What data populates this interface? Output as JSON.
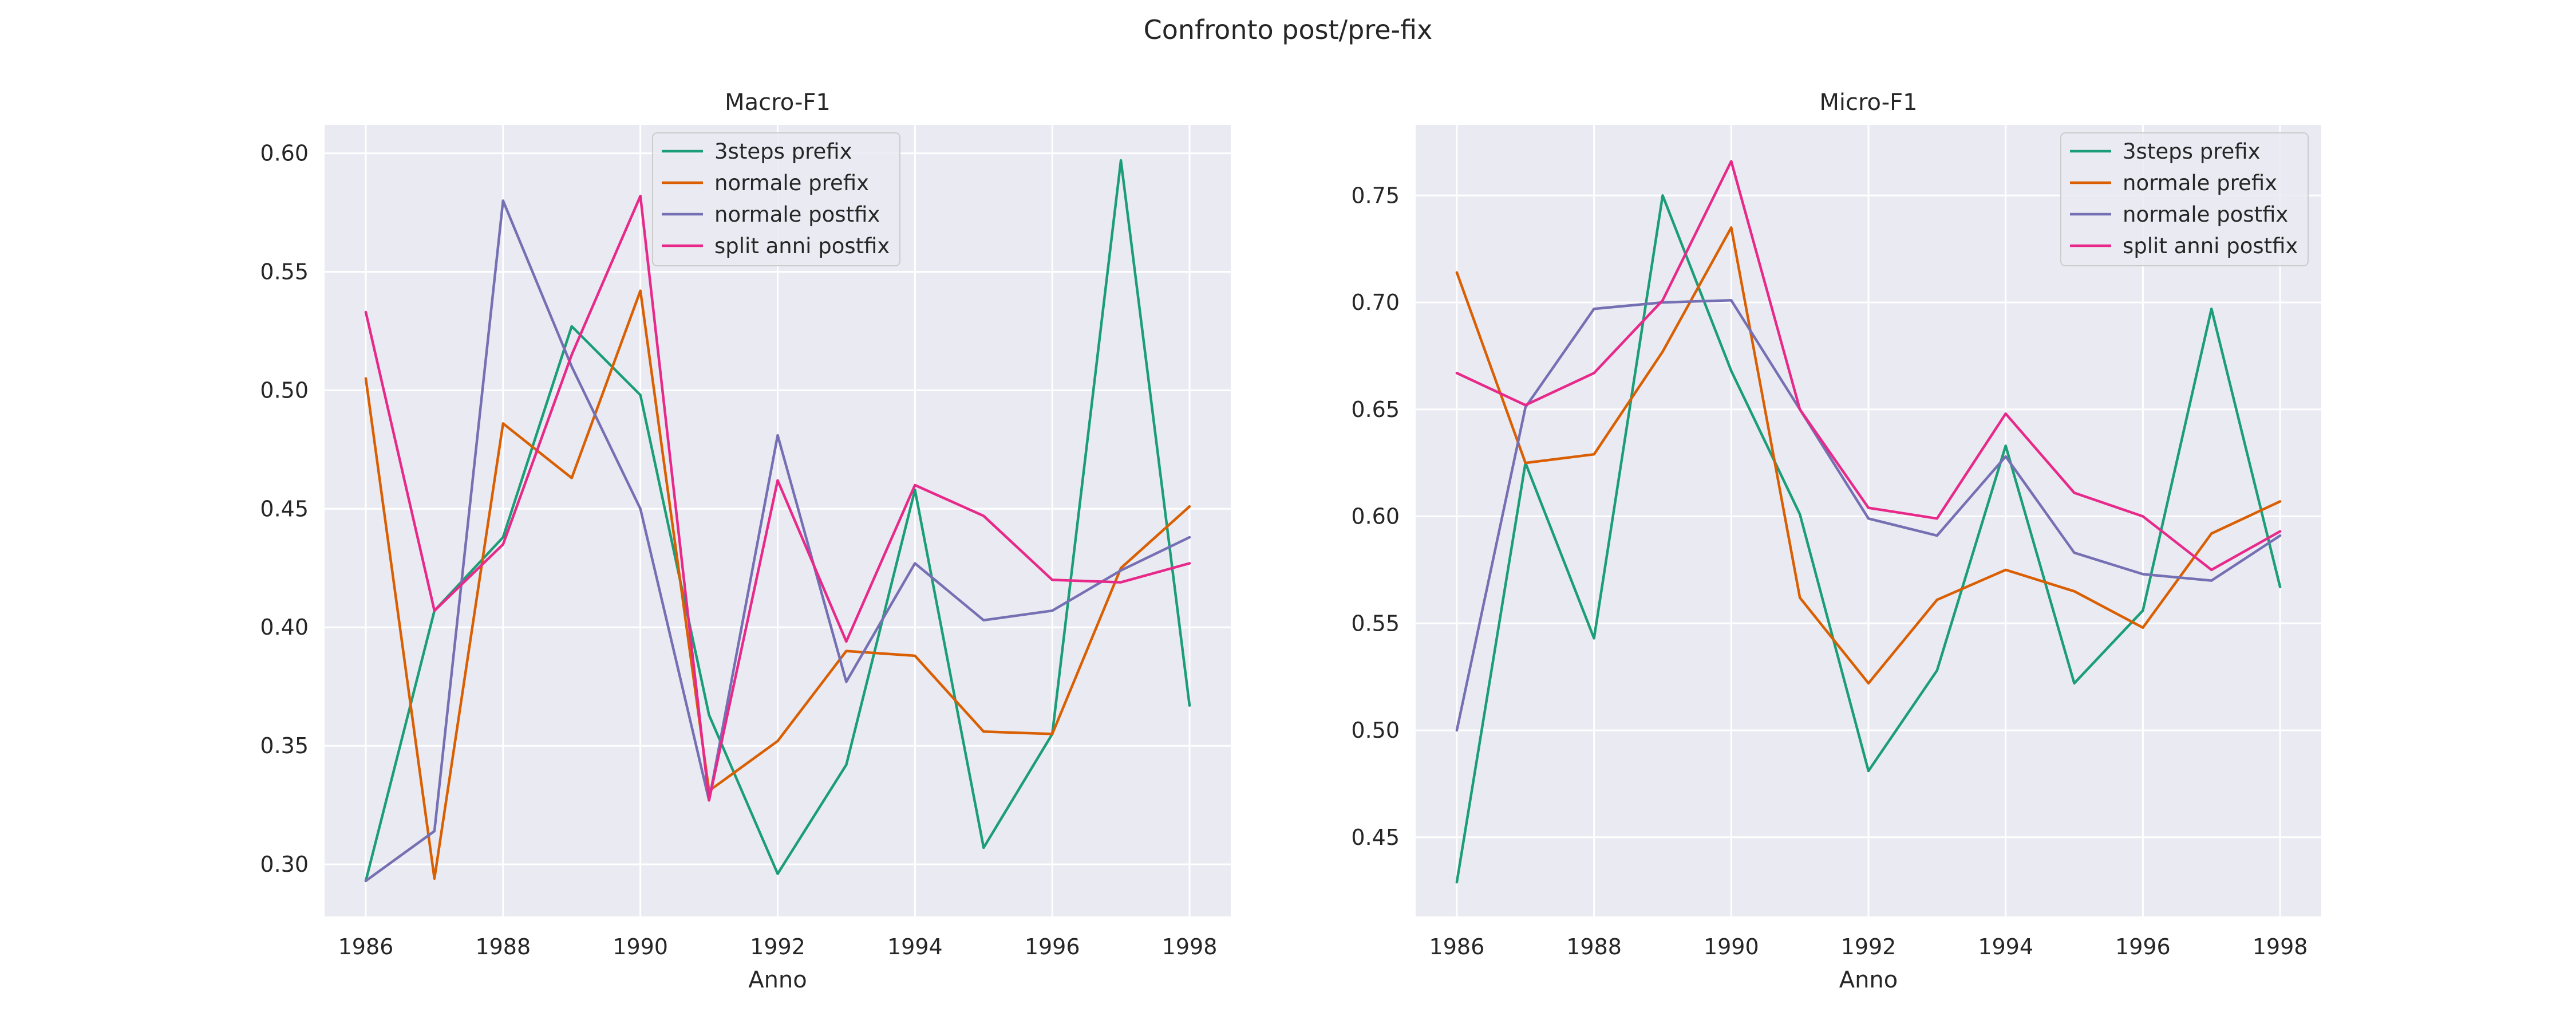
{
  "figure": {
    "suptitle": "Confronto post/pre-fix"
  },
  "chart_data": [
    {
      "type": "line",
      "title": "Macro-F1",
      "xlabel": "Anno",
      "ylabel": "",
      "x": [
        1986,
        1987,
        1988,
        1989,
        1990,
        1991,
        1992,
        1993,
        1994,
        1995,
        1996,
        1997,
        1998
      ],
      "xlim": [
        1985.4,
        1998.6
      ],
      "ylim": [
        0.278,
        0.612
      ],
      "xticks": [
        1986,
        1988,
        1990,
        1992,
        1994,
        1996,
        1998
      ],
      "yticks": [
        "0.30",
        "0.35",
        "0.40",
        "0.45",
        "0.50",
        "0.55",
        "0.60"
      ],
      "grid": true,
      "legend_position": "top-center",
      "series": [
        {
          "name": "3steps prefix",
          "color": "#1b9e77",
          "values": [
            0.293,
            0.407,
            0.438,
            0.527,
            0.498,
            0.363,
            0.296,
            0.342,
            0.458,
            0.307,
            0.355,
            0.597,
            0.367
          ]
        },
        {
          "name": "normale prefix",
          "color": "#d95f02",
          "values": [
            0.505,
            0.294,
            0.486,
            0.463,
            0.542,
            0.331,
            0.352,
            0.39,
            0.388,
            0.356,
            0.355,
            0.425,
            0.451
          ]
        },
        {
          "name": "normale postfix",
          "color": "#7570b3",
          "values": [
            0.293,
            0.314,
            0.58,
            0.51,
            0.45,
            0.327,
            0.481,
            0.377,
            0.427,
            0.403,
            0.407,
            0.424,
            0.438
          ]
        },
        {
          "name": "split anni postfix",
          "color": "#e7298a",
          "values": [
            0.533,
            0.407,
            0.435,
            0.515,
            0.582,
            0.327,
            0.462,
            0.394,
            0.46,
            0.447,
            0.42,
            0.419,
            0.427
          ]
        }
      ]
    },
    {
      "type": "line",
      "title": "Micro-F1",
      "xlabel": "Anno",
      "ylabel": "",
      "x": [
        1986,
        1987,
        1988,
        1989,
        1990,
        1991,
        1992,
        1993,
        1994,
        1995,
        1996,
        1997,
        1998
      ],
      "xlim": [
        1985.4,
        1998.6
      ],
      "ylim": [
        0.413,
        0.783
      ],
      "xticks": [
        1986,
        1988,
        1990,
        1992,
        1994,
        1996,
        1998
      ],
      "yticks": [
        "0.45",
        "0.50",
        "0.55",
        "0.60",
        "0.65",
        "0.70",
        "0.75"
      ],
      "grid": true,
      "legend_position": "top-right",
      "series": [
        {
          "name": "3steps prefix",
          "color": "#1b9e77",
          "values": [
            0.429,
            0.625,
            0.543,
            0.75,
            0.668,
            0.601,
            0.481,
            0.528,
            0.633,
            0.522,
            0.556,
            0.697,
            0.567
          ]
        },
        {
          "name": "normale prefix",
          "color": "#d95f02",
          "values": [
            0.714,
            0.625,
            0.629,
            0.677,
            0.735,
            0.562,
            0.522,
            0.561,
            0.575,
            0.565,
            0.548,
            0.592,
            0.607
          ]
        },
        {
          "name": "normale postfix",
          "color": "#7570b3",
          "values": [
            0.5,
            0.651,
            0.697,
            0.7,
            0.701,
            0.65,
            0.599,
            0.591,
            0.628,
            0.583,
            0.573,
            0.57,
            0.591
          ]
        },
        {
          "name": "split anni postfix",
          "color": "#e7298a",
          "values": [
            0.667,
            0.652,
            0.667,
            0.701,
            0.766,
            0.65,
            0.604,
            0.599,
            0.648,
            0.611,
            0.6,
            0.575,
            0.593
          ]
        }
      ]
    }
  ]
}
